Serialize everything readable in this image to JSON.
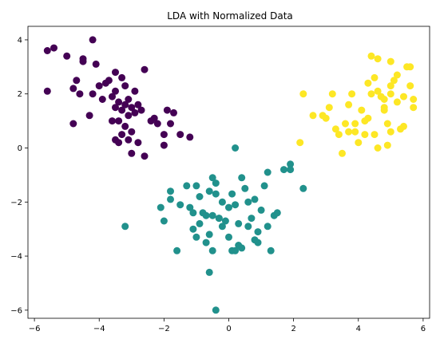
{
  "chart_data": {
    "type": "scatter",
    "title": "LDA with Normalized Data",
    "xlabel": "",
    "ylabel": "",
    "xlim": [
      -6.2,
      6.2
    ],
    "ylim": [
      -6.3,
      4.5
    ],
    "xticks": [
      -6,
      -4,
      -2,
      0,
      2,
      4,
      6
    ],
    "yticks": [
      -6,
      -4,
      -2,
      0,
      2,
      4
    ],
    "xtick_labels": [
      "−6",
      "−4",
      "−2",
      "0",
      "2",
      "4",
      "6"
    ],
    "ytick_labels": [
      "−6",
      "−4",
      "−2",
      "0",
      "2",
      "4"
    ],
    "grid": false,
    "legend": "none",
    "series": [
      {
        "color": "#440154",
        "points": [
          [
            -5.6,
            3.6
          ],
          [
            -5.4,
            3.7
          ],
          [
            -5.6,
            2.1
          ],
          [
            -5.0,
            3.4
          ],
          [
            -4.5,
            3.3
          ],
          [
            -4.5,
            3.2
          ],
          [
            -4.2,
            4.0
          ],
          [
            -4.1,
            3.1
          ],
          [
            -4.7,
            2.5
          ],
          [
            -4.8,
            2.2
          ],
          [
            -4.6,
            2.0
          ],
          [
            -4.8,
            0.9
          ],
          [
            -4.3,
            1.2
          ],
          [
            -4.0,
            2.3
          ],
          [
            -4.2,
            2.0
          ],
          [
            -3.9,
            1.8
          ],
          [
            -3.8,
            2.4
          ],
          [
            -3.7,
            2.5
          ],
          [
            -3.5,
            2.8
          ],
          [
            -3.3,
            2.6
          ],
          [
            -3.2,
            2.3
          ],
          [
            -3.5,
            2.1
          ],
          [
            -3.6,
            1.9
          ],
          [
            -3.4,
            1.7
          ],
          [
            -3.2,
            1.6
          ],
          [
            -3.1,
            1.8
          ],
          [
            -3.5,
            1.5
          ],
          [
            -3.3,
            1.4
          ],
          [
            -3.0,
            1.5
          ],
          [
            -2.8,
            1.6
          ],
          [
            -2.7,
            1.4
          ],
          [
            -2.9,
            1.3
          ],
          [
            -3.1,
            1.2
          ],
          [
            -2.6,
            2.9
          ],
          [
            -2.9,
            2.1
          ],
          [
            -3.4,
            1.0
          ],
          [
            -3.6,
            1.0
          ],
          [
            -3.2,
            0.8
          ],
          [
            -3.0,
            0.6
          ],
          [
            -3.3,
            0.5
          ],
          [
            -3.1,
            0.3
          ],
          [
            -3.5,
            0.3
          ],
          [
            -3.4,
            0.2
          ],
          [
            -2.8,
            0.2
          ],
          [
            -3.0,
            -0.2
          ],
          [
            -2.6,
            -0.3
          ],
          [
            -2.4,
            1.0
          ],
          [
            -2.2,
            0.9
          ],
          [
            -2.0,
            0.5
          ],
          [
            -1.9,
            1.4
          ],
          [
            -1.7,
            1.3
          ],
          [
            -1.8,
            0.9
          ],
          [
            -1.5,
            0.5
          ],
          [
            -1.2,
            0.4
          ],
          [
            -2.0,
            0.1
          ],
          [
            -2.3,
            1.1
          ]
        ]
      },
      {
        "color": "#21918c",
        "points": [
          [
            0.2,
            0.0
          ],
          [
            -3.2,
            -2.9
          ],
          [
            -2.0,
            -2.7
          ],
          [
            -2.1,
            -2.2
          ],
          [
            -1.8,
            -1.6
          ],
          [
            -1.8,
            -1.9
          ],
          [
            -1.6,
            -3.8
          ],
          [
            -1.5,
            -2.1
          ],
          [
            -1.2,
            -2.2
          ],
          [
            -1.3,
            -1.4
          ],
          [
            -1.1,
            -2.4
          ],
          [
            -1.1,
            -3.0
          ],
          [
            -1.0,
            -3.3
          ],
          [
            -0.9,
            -1.8
          ],
          [
            -0.8,
            -2.4
          ],
          [
            -0.7,
            -2.5
          ],
          [
            -0.6,
            -1.6
          ],
          [
            -0.5,
            -1.1
          ],
          [
            -0.4,
            -1.3
          ],
          [
            -0.5,
            -2.5
          ],
          [
            -0.6,
            -3.2
          ],
          [
            -0.7,
            -3.5
          ],
          [
            -0.5,
            -3.8
          ],
          [
            -0.3,
            -2.6
          ],
          [
            -0.2,
            -2.9
          ],
          [
            -0.1,
            -2.7
          ],
          [
            0.0,
            -3.3
          ],
          [
            0.1,
            -1.7
          ],
          [
            0.2,
            -2.1
          ],
          [
            0.3,
            -2.8
          ],
          [
            0.3,
            -3.6
          ],
          [
            0.4,
            -3.7
          ],
          [
            0.5,
            -1.5
          ],
          [
            0.6,
            -2.0
          ],
          [
            0.7,
            -2.6
          ],
          [
            0.8,
            -3.4
          ],
          [
            0.9,
            -3.1
          ],
          [
            1.0,
            -2.3
          ],
          [
            1.1,
            -1.4
          ],
          [
            1.2,
            -2.9
          ],
          [
            1.3,
            -3.8
          ],
          [
            1.4,
            -2.5
          ],
          [
            1.5,
            -2.4
          ],
          [
            1.7,
            -0.8
          ],
          [
            1.9,
            -0.6
          ],
          [
            1.9,
            -0.8
          ],
          [
            2.3,
            -1.5
          ],
          [
            -0.4,
            -1.7
          ],
          [
            -0.2,
            -2.0
          ],
          [
            0.0,
            -2.2
          ],
          [
            0.1,
            -3.8
          ],
          [
            0.2,
            -3.8
          ],
          [
            -0.6,
            -4.6
          ],
          [
            -0.4,
            -6.0
          ],
          [
            0.8,
            -1.9
          ],
          [
            -0.9,
            -2.8
          ],
          [
            1.2,
            -0.9
          ],
          [
            -1.0,
            -1.4
          ],
          [
            0.4,
            -1.1
          ],
          [
            -0.3,
            -2.6
          ],
          [
            0.6,
            -2.9
          ],
          [
            0.9,
            -3.5
          ]
        ]
      },
      {
        "color": "#fde725",
        "points": [
          [
            2.2,
            0.2
          ],
          [
            2.3,
            2.0
          ],
          [
            2.6,
            1.2
          ],
          [
            2.9,
            1.2
          ],
          [
            3.0,
            1.1
          ],
          [
            3.1,
            1.5
          ],
          [
            3.2,
            2.0
          ],
          [
            3.3,
            0.7
          ],
          [
            3.4,
            0.5
          ],
          [
            3.5,
            -0.2
          ],
          [
            3.6,
            0.9
          ],
          [
            3.7,
            0.6
          ],
          [
            3.7,
            1.6
          ],
          [
            3.8,
            2.0
          ],
          [
            3.9,
            0.9
          ],
          [
            3.9,
            0.6
          ],
          [
            4.0,
            0.2
          ],
          [
            4.1,
            1.4
          ],
          [
            4.2,
            1.0
          ],
          [
            4.3,
            1.1
          ],
          [
            4.3,
            2.4
          ],
          [
            4.4,
            3.4
          ],
          [
            4.6,
            3.3
          ],
          [
            4.6,
            2.1
          ],
          [
            4.7,
            1.9
          ],
          [
            4.8,
            1.8
          ],
          [
            4.5,
            0.5
          ],
          [
            4.6,
            0.0
          ],
          [
            4.8,
            1.4
          ],
          [
            4.9,
            0.9
          ],
          [
            5.0,
            0.6
          ],
          [
            5.0,
            2.3
          ],
          [
            5.1,
            2.5
          ],
          [
            5.0,
            3.2
          ],
          [
            5.2,
            2.7
          ],
          [
            5.2,
            1.7
          ],
          [
            5.3,
            0.7
          ],
          [
            5.4,
            0.8
          ],
          [
            5.5,
            3.0
          ],
          [
            5.6,
            3.0
          ],
          [
            5.6,
            2.3
          ],
          [
            5.7,
            1.8
          ],
          [
            5.7,
            1.5
          ],
          [
            5.0,
            2.0
          ],
          [
            4.8,
            1.5
          ],
          [
            4.4,
            2.0
          ],
          [
            5.4,
            1.9
          ],
          [
            4.9,
            0.1
          ],
          [
            4.2,
            0.5
          ],
          [
            4.5,
            2.6
          ]
        ]
      }
    ]
  }
}
